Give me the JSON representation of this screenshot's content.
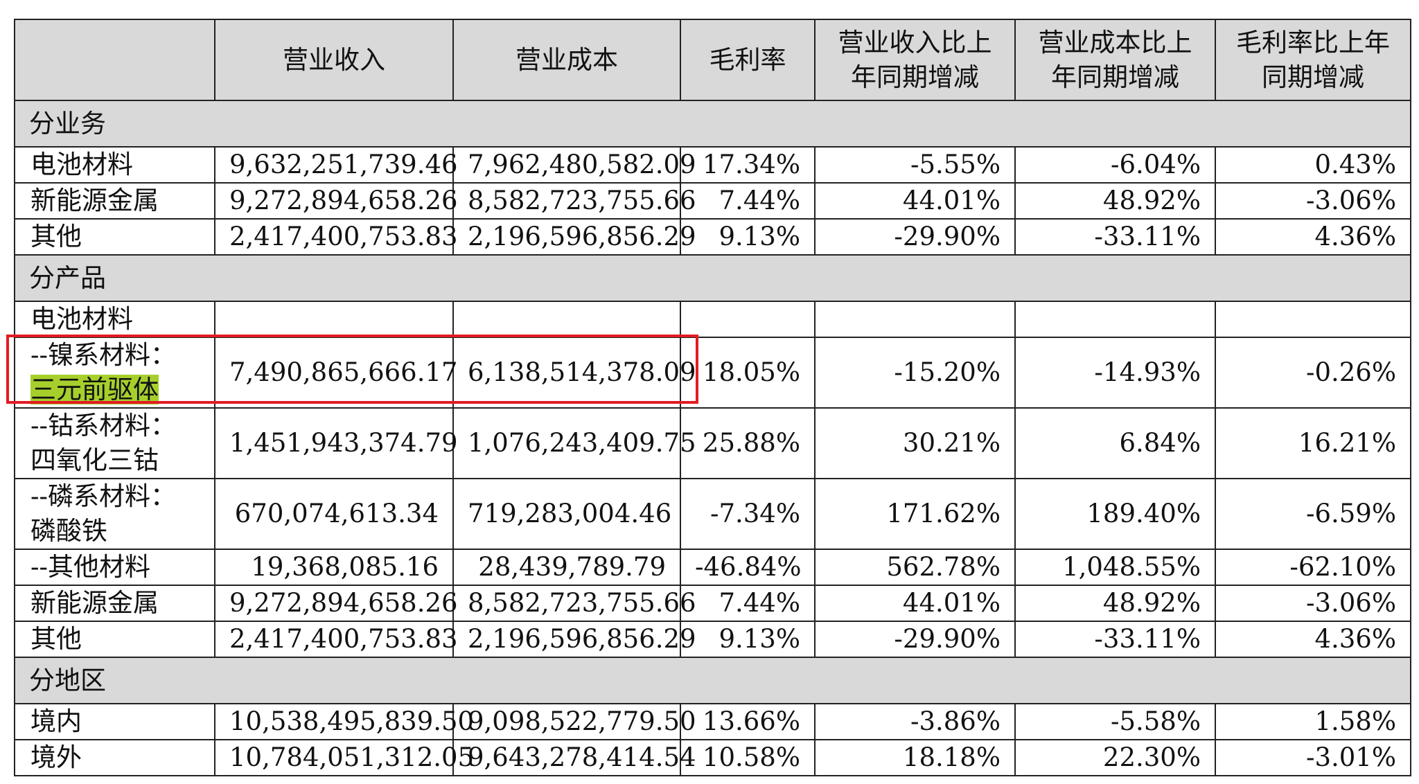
{
  "headers": [
    "",
    "营业收入",
    "营业成本",
    "毛利率",
    "营业收入比上年同期增减",
    "营业成本比上年同期增减",
    "毛利率比上年同期增减"
  ],
  "header_lines": [
    [
      ""
    ],
    [
      "营业收入"
    ],
    [
      "营业成本"
    ],
    [
      "毛利率"
    ],
    [
      "营业收入比上",
      "年同期增减"
    ],
    [
      "营业成本比上",
      "年同期增减"
    ],
    [
      "毛利率比上年",
      "同期增减"
    ]
  ],
  "rows": [
    {
      "type": "section",
      "label": "分业务"
    },
    {
      "type": "data",
      "label_lines": [
        "电池材料"
      ],
      "values": [
        "9,632,251,739.46",
        "7,962,480,582.09",
        "17.34%",
        "-5.55%",
        "-6.04%",
        "0.43%"
      ]
    },
    {
      "type": "data",
      "label_lines": [
        "新能源金属"
      ],
      "values": [
        "9,272,894,658.26",
        "8,582,723,755.66",
        "7.44%",
        "44.01%",
        "48.92%",
        "-3.06%"
      ]
    },
    {
      "type": "data",
      "label_lines": [
        "其他"
      ],
      "values": [
        "2,417,400,753.83",
        "2,196,596,856.29",
        "9.13%",
        "-29.90%",
        "-33.11%",
        "4.36%"
      ]
    },
    {
      "type": "section",
      "label": "分产品"
    },
    {
      "type": "data",
      "label_lines": [
        "电池材料"
      ],
      "values": [
        "",
        "",
        "",
        "",
        "",
        ""
      ]
    },
    {
      "type": "data",
      "label_lines": [
        "--镍系材料：",
        "三元前驱体"
      ],
      "highlight_line": 1,
      "values": [
        "7,490,865,666.17",
        "6,138,514,378.09",
        "18.05%",
        "-15.20%",
        "-14.93%",
        "-0.26%"
      ]
    },
    {
      "type": "data",
      "label_lines": [
        "--钴系材料：",
        "四氧化三钴"
      ],
      "values": [
        "1,451,943,374.79",
        "1,076,243,409.75",
        "25.88%",
        "30.21%",
        "6.84%",
        "16.21%"
      ]
    },
    {
      "type": "data",
      "label_lines": [
        "--磷系材料：",
        "磷酸铁"
      ],
      "values": [
        "670,074,613.34",
        "719,283,004.46",
        "-7.34%",
        "171.62%",
        "189.40%",
        "-6.59%"
      ]
    },
    {
      "type": "data",
      "label_lines": [
        "--其他材料"
      ],
      "values": [
        "19,368,085.16",
        "28,439,789.79",
        "-46.84%",
        "562.78%",
        "1,048.55%",
        "-62.10%"
      ]
    },
    {
      "type": "data",
      "label_lines": [
        "新能源金属"
      ],
      "values": [
        "9,272,894,658.26",
        "8,582,723,755.66",
        "7.44%",
        "44.01%",
        "48.92%",
        "-3.06%"
      ]
    },
    {
      "type": "data",
      "label_lines": [
        "其他"
      ],
      "values": [
        "2,417,400,753.83",
        "2,196,596,856.29",
        "9.13%",
        "-29.90%",
        "-33.11%",
        "4.36%"
      ]
    },
    {
      "type": "section",
      "label": "分地区"
    },
    {
      "type": "data",
      "label_lines": [
        "境内"
      ],
      "values": [
        "10,538,495,839.50",
        "9,098,522,779.50",
        "13.66%",
        "-3.86%",
        "-5.58%",
        "1.58%"
      ]
    },
    {
      "type": "data",
      "label_lines": [
        "境外"
      ],
      "values": [
        "10,784,051,312.05",
        "9,643,278,414.54",
        "10.58%",
        "18.18%",
        "22.30%",
        "-3.01%"
      ]
    }
  ],
  "colors": {
    "header_bg": "#d9d9d9",
    "highlight_box": "#e31b23",
    "text_highlight": "#a6cf2c"
  }
}
